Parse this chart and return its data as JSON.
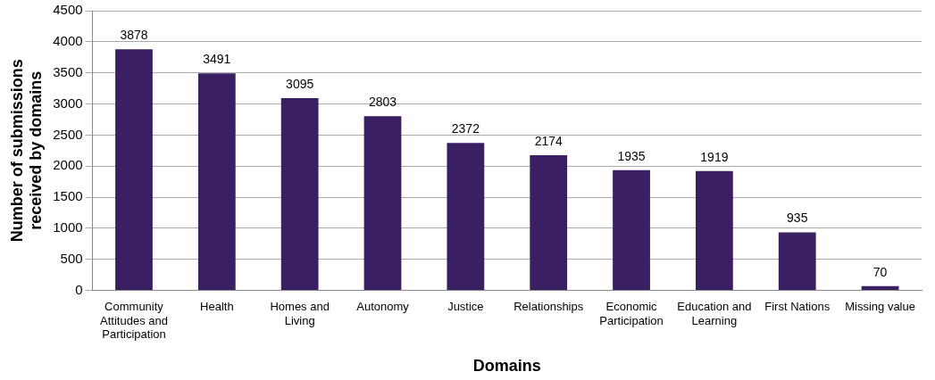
{
  "chart_data": {
    "type": "bar",
    "xlabel": "Domains",
    "ylabel": "Number of submissions received by domains",
    "categories": [
      "Community Attitudes and Participation",
      "Health",
      "Homes and Living",
      "Autonomy",
      "Justice",
      "Relationships",
      "Economic Participation",
      "Education and Learning",
      "First Nations",
      "Missing value"
    ],
    "values": [
      3878,
      3491,
      3095,
      2803,
      2372,
      2174,
      1935,
      1919,
      935,
      70
    ],
    "color": "#3b1f63",
    "ylim": [
      0,
      4500
    ],
    "yticks": [
      0,
      500,
      1000,
      1500,
      2000,
      2500,
      3000,
      3500,
      4000,
      4500
    ],
    "grid": "y",
    "data_labels": true,
    "legend": false
  }
}
